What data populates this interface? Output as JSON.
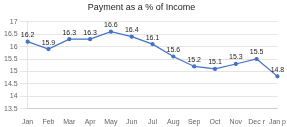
{
  "chart_data": {
    "type": "line",
    "title": "Payment as a % of Income",
    "categories": [
      "Jan",
      "Feb",
      "Mar",
      "Apr",
      "May",
      "Jun",
      "Jul",
      "Aug",
      "Sep",
      "Oct",
      "Nov",
      "Dec r",
      "Jan p"
    ],
    "values": [
      16.2,
      15.9,
      16.3,
      16.3,
      16.6,
      16.4,
      16.1,
      15.6,
      15.2,
      15.1,
      15.3,
      15.5,
      14.8
    ],
    "color": "#4472C4",
    "marker": "circle",
    "ylim": [
      13.5,
      17
    ],
    "yticks": [
      13.5,
      14,
      14.5,
      15,
      15.5,
      16,
      16.5,
      17
    ],
    "grid": true,
    "data_labels": true
  }
}
